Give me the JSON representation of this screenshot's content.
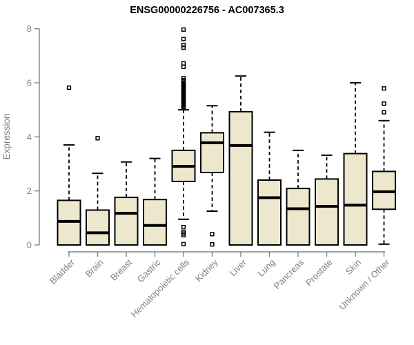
{
  "chart_data": {
    "type": "boxplot",
    "title": "ENSG00000226756 - AC007365.3",
    "ylabel": "Expression",
    "xlabel": "",
    "ylim": [
      0,
      8
    ],
    "yticks": [
      0,
      2,
      4,
      6,
      8
    ],
    "grid": false,
    "legend": "none",
    "box_fill_color": "#ece7cd",
    "box_stroke_color": "#000000",
    "axis_color": "#808080",
    "categories": [
      "Bladder",
      "Brain",
      "Breast",
      "Gastric",
      "Hematopoietic cells",
      "Kidney",
      "Liver",
      "Lung",
      "Pancreas",
      "Prostate",
      "Skin",
      "Unknown / Other"
    ],
    "series": [
      {
        "name": "Bladder",
        "whisker_low": 0,
        "q1": 0,
        "median": 0.87,
        "q3": 1.65,
        "whisker_high": 3.7,
        "outliers": [
          5.82
        ]
      },
      {
        "name": "Brain",
        "whisker_low": 0,
        "q1": 0,
        "median": 0.45,
        "q3": 1.29,
        "whisker_high": 2.65,
        "outliers": [
          3.95
        ]
      },
      {
        "name": "Breast",
        "whisker_low": 0,
        "q1": 0,
        "median": 1.17,
        "q3": 1.76,
        "whisker_high": 3.07,
        "outliers": []
      },
      {
        "name": "Gastric",
        "whisker_low": 0,
        "q1": 0,
        "median": 0.72,
        "q3": 1.68,
        "whisker_high": 3.2,
        "outliers": []
      },
      {
        "name": "Hematopoietic cells",
        "whisker_low": 0.95,
        "q1": 2.35,
        "median": 2.91,
        "q3": 3.5,
        "whisker_high": 5.0,
        "outliers": [
          0.03,
          0.36,
          0.42,
          0.48,
          0.66,
          5.06,
          5.1,
          5.15,
          5.2,
          5.25,
          5.3,
          5.35,
          5.4,
          5.45,
          5.5,
          5.55,
          5.6,
          5.65,
          5.7,
          5.75,
          5.8,
          5.85,
          5.9,
          5.95,
          6.0,
          6.05,
          6.1,
          6.17,
          6.59,
          6.72,
          7.3,
          7.4,
          7.62,
          7.97
        ]
      },
      {
        "name": "Kidney",
        "whisker_low": 1.25,
        "q1": 2.68,
        "median": 3.78,
        "q3": 4.15,
        "whisker_high": 5.15,
        "outliers": [
          0.4,
          0.02
        ]
      },
      {
        "name": "Liver",
        "whisker_low": 0,
        "q1": 0,
        "median": 3.68,
        "q3": 4.93,
        "whisker_high": 6.25,
        "outliers": []
      },
      {
        "name": "Lung",
        "whisker_low": 0,
        "q1": 0,
        "median": 1.75,
        "q3": 2.4,
        "whisker_high": 4.17,
        "outliers": []
      },
      {
        "name": "Pancreas",
        "whisker_low": 0,
        "q1": 0,
        "median": 1.34,
        "q3": 2.09,
        "whisker_high": 3.5,
        "outliers": []
      },
      {
        "name": "Prostate",
        "whisker_low": 0,
        "q1": 0,
        "median": 1.43,
        "q3": 2.44,
        "whisker_high": 3.32,
        "outliers": []
      },
      {
        "name": "Skin",
        "whisker_low": 0,
        "q1": 0,
        "median": 1.47,
        "q3": 3.38,
        "whisker_high": 6.0,
        "outliers": []
      },
      {
        "name": "Unknown / Other",
        "whisker_low": 0.03,
        "q1": 1.32,
        "median": 1.97,
        "q3": 2.72,
        "whisker_high": 4.6,
        "outliers": [
          4.91,
          5.23,
          5.79
        ]
      }
    ]
  }
}
